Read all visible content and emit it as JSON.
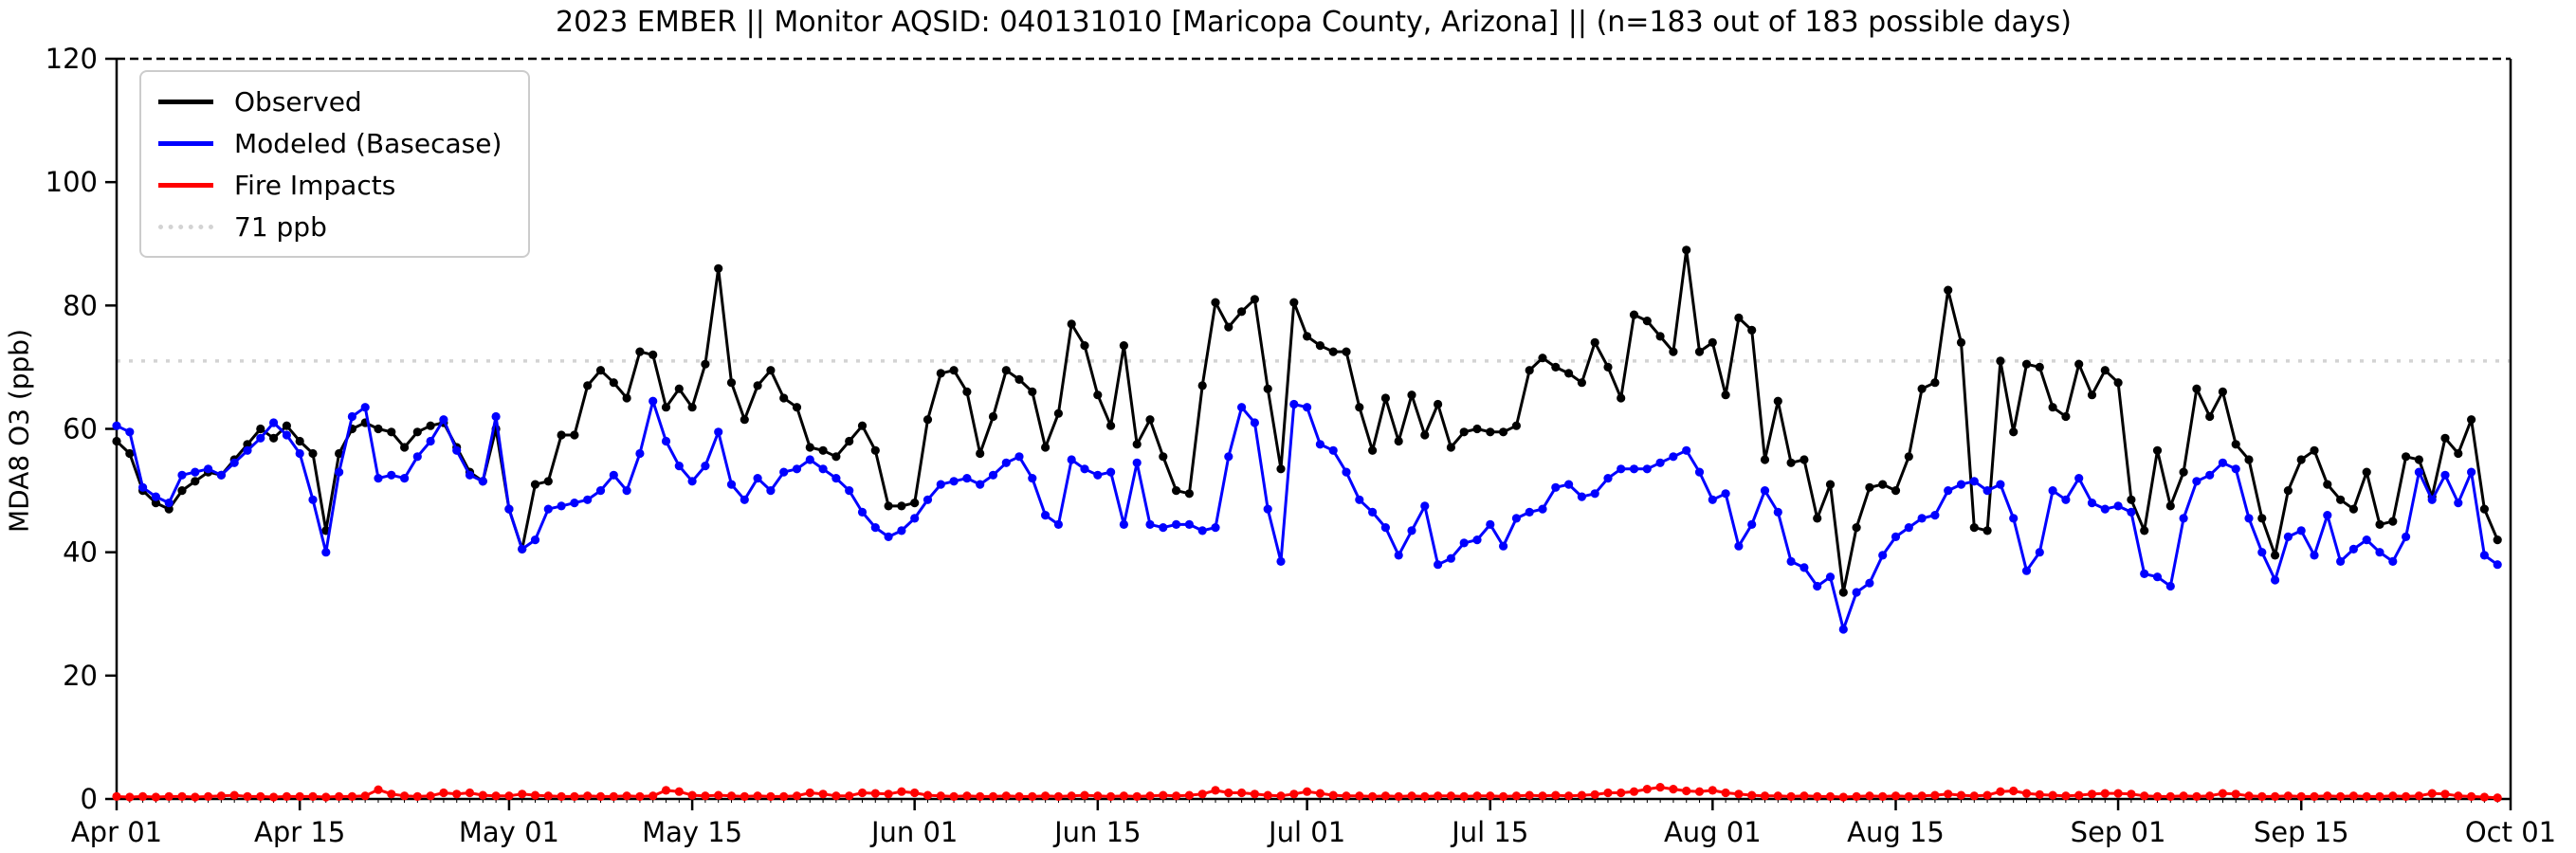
{
  "title": "2023 EMBER || Monitor AQSID: 040131010 [Maricopa County, Arizona] || (n=183 out of 183 possible days)",
  "chart_data": {
    "type": "line",
    "title": "2023 EMBER || Monitor AQSID: 040131010 [Maricopa County, Arizona] || (n=183 out of 183 possible days)",
    "xlabel": "",
    "ylabel": "MDA8 O3 (ppb)",
    "ylim": [
      0,
      120
    ],
    "yticks": [
      0,
      20,
      40,
      60,
      80,
      100,
      120
    ],
    "n_days": 183,
    "x_start": "Apr 01",
    "x_end": "Oct 01",
    "grid": false,
    "xticks": [
      {
        "label": "Apr 01",
        "day": 0
      },
      {
        "label": "Apr 15",
        "day": 14
      },
      {
        "label": "May 01",
        "day": 30
      },
      {
        "label": "May 15",
        "day": 44
      },
      {
        "label": "Jun 01",
        "day": 61
      },
      {
        "label": "Jun 15",
        "day": 75
      },
      {
        "label": "Jul 01",
        "day": 91
      },
      {
        "label": "Jul 15",
        "day": 105
      },
      {
        "label": "Aug 01",
        "day": 122
      },
      {
        "label": "Aug 15",
        "day": 136
      },
      {
        "label": "Sep 01",
        "day": 153
      },
      {
        "label": "Sep 15",
        "day": 167
      },
      {
        "label": "Oct 01",
        "day": 183
      }
    ],
    "threshold": {
      "value": 71,
      "label": "71 ppb",
      "color": "#d3d3d3"
    },
    "legend": {
      "position": "upper-left",
      "items": [
        {
          "label": "Observed",
          "color": "#000000",
          "style": "solid"
        },
        {
          "label": "Modeled (Basecase)",
          "color": "#0000ff",
          "style": "solid"
        },
        {
          "label": "Fire Impacts",
          "color": "#ff0000",
          "style": "solid"
        },
        {
          "label": "71 ppb",
          "color": "#d3d3d3",
          "style": "dotted"
        }
      ]
    },
    "series": [
      {
        "name": "Observed",
        "color": "#000000",
        "values": [
          58,
          56,
          50,
          48,
          47,
          50,
          51.5,
          53,
          52.5,
          55,
          57.5,
          60,
          58.5,
          60.5,
          58,
          56,
          43.5,
          56,
          60,
          61,
          60,
          59.5,
          57,
          59.5,
          60.5,
          61,
          57,
          53,
          51.5,
          60,
          47,
          40.5,
          51,
          51.5,
          59,
          59,
          67,
          69.5,
          67.5,
          65,
          72.5,
          72,
          63.5,
          66.5,
          63.5,
          70.5,
          86,
          67.5,
          61.5,
          67,
          69.5,
          65,
          63.5,
          57,
          56.5,
          55.5,
          58,
          60.5,
          56.5,
          47.5,
          47.5,
          48,
          61.5,
          69,
          69.5,
          66,
          56,
          62,
          69.5,
          68,
          66,
          57,
          62.5,
          77,
          73.5,
          65.5,
          60.5,
          73.5,
          57.5,
          61.5,
          55.5,
          50,
          49.5,
          67,
          80.5,
          76.5,
          79,
          81,
          66.5,
          53.5,
          80.5,
          75,
          73.5,
          72.5,
          72.5,
          63.5,
          56.5,
          65,
          58,
          65.5,
          59,
          64,
          57,
          59.5,
          60,
          59.5,
          59.5,
          60.5,
          69.5,
          71.5,
          70,
          69,
          67.5,
          74,
          70,
          65,
          78.5,
          77.5,
          75,
          72.5,
          89,
          72.5,
          74,
          65.5,
          78,
          76,
          55,
          64.5,
          54.5,
          55,
          45.5,
          51,
          33.5,
          44,
          50.5,
          51,
          50,
          55.5,
          66.5,
          67.5,
          82.5,
          74,
          44,
          43.5,
          71,
          59.5,
          70.5,
          70,
          63.5,
          62,
          70.5,
          65.5,
          69.5,
          67.5,
          48.5,
          43.5,
          56.5,
          47.5,
          53,
          66.5,
          62,
          66,
          57.5,
          55,
          45.5,
          39.5,
          50,
          55,
          56.5,
          51,
          48.5,
          47,
          53,
          44.5,
          45,
          55.5,
          55,
          49,
          58.5,
          56,
          61.5,
          47,
          42
        ]
      },
      {
        "name": "Modeled (Basecase)",
        "color": "#0000ff",
        "values": [
          60.5,
          59.5,
          50.5,
          49,
          48,
          52.5,
          53,
          53.5,
          52.5,
          54.5,
          56.5,
          58.5,
          61,
          59,
          56,
          48.5,
          40,
          53,
          62,
          63.5,
          52,
          52.5,
          52,
          55.5,
          58,
          61.5,
          56.5,
          52.5,
          51.5,
          62,
          47,
          40.5,
          42,
          47,
          47.5,
          48,
          48.5,
          50,
          52.5,
          50,
          56,
          64.5,
          58,
          54,
          51.5,
          54,
          59.5,
          51,
          48.5,
          52,
          50,
          53,
          53.5,
          55,
          53.5,
          52,
          50,
          46.5,
          44,
          42.5,
          43.5,
          45.5,
          48.5,
          51,
          51.5,
          52,
          51,
          52.5,
          54.5,
          55.5,
          52,
          46,
          44.5,
          55,
          53.5,
          52.5,
          53,
          44.5,
          54.5,
          44.5,
          44,
          44.5,
          44.5,
          43.5,
          44,
          55.5,
          63.5,
          61,
          47,
          38.5,
          64,
          63.5,
          57.5,
          56.5,
          53,
          48.5,
          46.5,
          44,
          39.5,
          43.5,
          47.5,
          38,
          39,
          41.5,
          42,
          44.5,
          41,
          45.5,
          46.5,
          47,
          50.5,
          51,
          49,
          49.5,
          52,
          53.5,
          53.5,
          53.5,
          54.5,
          55.5,
          56.5,
          53,
          48.5,
          49.5,
          41,
          44.5,
          50,
          46.5,
          38.5,
          37.5,
          34.5,
          36,
          27.5,
          33.5,
          35,
          39.5,
          42.5,
          44,
          45.5,
          46,
          50,
          51,
          51.5,
          50,
          51,
          45.5,
          37,
          40,
          50,
          48.5,
          52,
          48,
          47,
          47.5,
          46.5,
          36.5,
          36,
          34.5,
          45.5,
          51.5,
          52.5,
          54.5,
          53.5,
          45.5,
          40,
          35.5,
          42.5,
          43.5,
          39.5,
          46,
          38.5,
          40.5,
          42,
          40,
          38.5,
          42.5,
          53,
          48.5,
          52.5,
          48,
          53,
          39.5,
          38
        ]
      },
      {
        "name": "Fire Impacts",
        "color": "#ff0000",
        "values": [
          0.4,
          0.3,
          0.4,
          0.3,
          0.4,
          0.4,
          0.3,
          0.4,
          0.5,
          0.6,
          0.4,
          0.4,
          0.3,
          0.4,
          0.4,
          0.4,
          0.3,
          0.4,
          0.4,
          0.5,
          1.5,
          0.8,
          0.5,
          0.4,
          0.5,
          1.0,
          0.8,
          1.0,
          0.6,
          0.5,
          0.5,
          0.8,
          0.6,
          0.5,
          0.4,
          0.4,
          0.5,
          0.4,
          0.4,
          0.5,
          0.4,
          0.5,
          1.4,
          1.2,
          0.6,
          0.5,
          0.6,
          0.5,
          0.4,
          0.5,
          0.4,
          0.4,
          0.5,
          1.0,
          0.8,
          0.5,
          0.5,
          1.0,
          0.9,
          0.8,
          1.2,
          1.0,
          0.6,
          0.5,
          0.4,
          0.5,
          0.4,
          0.4,
          0.5,
          0.4,
          0.4,
          0.5,
          0.4,
          0.5,
          0.6,
          0.5,
          0.4,
          0.5,
          0.4,
          0.5,
          0.6,
          0.5,
          0.6,
          0.8,
          1.4,
          1.0,
          1.0,
          0.8,
          0.6,
          0.5,
          0.8,
          1.2,
          0.9,
          0.6,
          0.5,
          0.5,
          0.4,
          0.5,
          0.4,
          0.5,
          0.4,
          0.5,
          0.5,
          0.4,
          0.5,
          0.5,
          0.4,
          0.5,
          0.6,
          0.5,
          0.6,
          0.5,
          0.6,
          0.7,
          1.0,
          1.0,
          1.2,
          1.6,
          1.9,
          1.6,
          1.3,
          1.2,
          1.4,
          1.0,
          0.8,
          0.6,
          0.5,
          0.5,
          0.4,
          0.5,
          0.4,
          0.4,
          0.3,
          0.4,
          0.5,
          0.4,
          0.5,
          0.4,
          0.5,
          0.6,
          0.8,
          0.6,
          0.5,
          0.6,
          1.2,
          1.3,
          0.9,
          0.7,
          0.6,
          0.5,
          0.6,
          0.8,
          0.9,
          0.9,
          0.8,
          0.5,
          0.4,
          0.4,
          0.5,
          0.4,
          0.5,
          0.9,
          0.8,
          0.5,
          0.4,
          0.4,
          0.5,
          0.4,
          0.4,
          0.5,
          0.4,
          0.5,
          0.4,
          0.4,
          0.5,
          0.4,
          0.5,
          0.9,
          0.8,
          0.5,
          0.4,
          0.3,
          0.2
        ]
      }
    ]
  }
}
